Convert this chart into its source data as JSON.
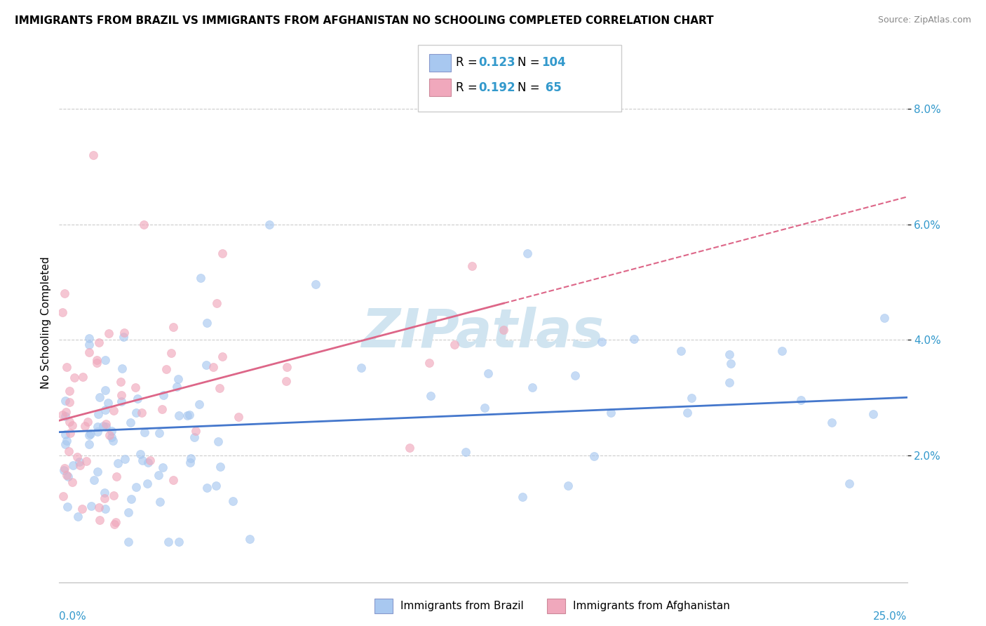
{
  "title": "IMMIGRANTS FROM BRAZIL VS IMMIGRANTS FROM AFGHANISTAN NO SCHOOLING COMPLETED CORRELATION CHART",
  "source": "Source: ZipAtlas.com",
  "ylabel": "No Schooling Completed",
  "y_tick_labels": [
    "2.0%",
    "4.0%",
    "6.0%",
    "8.0%"
  ],
  "y_tick_values": [
    0.02,
    0.04,
    0.06,
    0.08
  ],
  "x_range": [
    0.0,
    0.25
  ],
  "y_range": [
    -0.002,
    0.088
  ],
  "series_blue_label": "Immigrants from Brazil",
  "series_pink_label": "Immigrants from Afghanistan",
  "blue_color": "#a8c8f0",
  "pink_color": "#f0a8bc",
  "blue_line_color": "#4477cc",
  "pink_line_color": "#dd6688",
  "watermark_text": "ZIPatlas",
  "watermark_color": "#d0e4f0",
  "blue_R": 0.123,
  "blue_N": 104,
  "pink_R": 0.192,
  "pink_N": 65,
  "legend_R_color": "#000000",
  "legend_val_color": "#3399cc",
  "title_color": "#000000",
  "source_color": "#888888",
  "grid_color": "#cccccc",
  "axis_label_color": "#3399cc"
}
